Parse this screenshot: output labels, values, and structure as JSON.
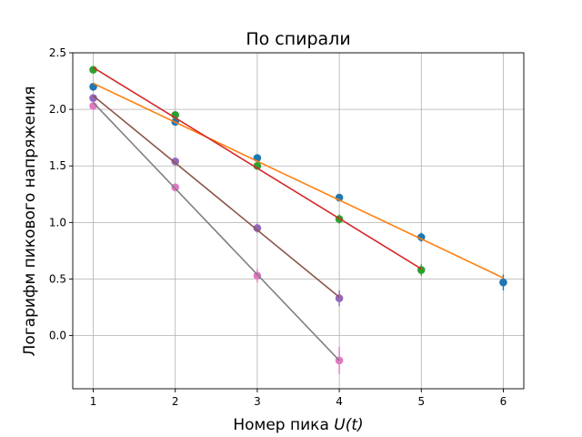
{
  "chart_data": {
    "type": "scatter",
    "title": "По спирали",
    "xlabel_prefix": "Номер пика ",
    "xlabel_math": "U(t)",
    "ylabel": "Логарифм пикового напряжения",
    "xlim": [
      0.75,
      6.25
    ],
    "ylim": [
      -0.47,
      2.5
    ],
    "xticks": [
      1,
      2,
      3,
      4,
      5,
      6
    ],
    "yticks": [
      0.0,
      0.5,
      1.0,
      1.5,
      2.0,
      2.5
    ],
    "xtick_labels": [
      "1",
      "2",
      "3",
      "4",
      "5",
      "6"
    ],
    "ytick_labels": [
      "0.0",
      "0.5",
      "1.0",
      "1.5",
      "2.0",
      "2.5"
    ],
    "grid": true,
    "series": [
      {
        "color": "#1f77b4",
        "kind": "points",
        "x": [
          1,
          2,
          3,
          4,
          5,
          6
        ],
        "y": [
          2.2,
          1.89,
          1.57,
          1.22,
          0.87,
          0.47
        ],
        "yerr": [
          0.02,
          0.02,
          0.03,
          0.03,
          0.04,
          0.07
        ]
      },
      {
        "color": "#ff7f0e",
        "kind": "line",
        "x": [
          1,
          6
        ],
        "y": [
          2.23,
          0.51
        ]
      },
      {
        "color": "#2ca02c",
        "kind": "points",
        "x": [
          1,
          2,
          3,
          4,
          5
        ],
        "y": [
          2.35,
          1.95,
          1.5,
          1.03,
          0.58
        ],
        "yerr": [
          0.02,
          0.02,
          0.03,
          0.04,
          0.05
        ]
      },
      {
        "color": "#d62728",
        "kind": "line",
        "x": [
          1,
          5
        ],
        "y": [
          2.37,
          0.59
        ]
      },
      {
        "color": "#9467bd",
        "kind": "points",
        "x": [
          1,
          2,
          3,
          4
        ],
        "y": [
          2.1,
          1.54,
          0.95,
          0.33
        ],
        "yerr": [
          0.02,
          0.03,
          0.04,
          0.07
        ]
      },
      {
        "color": "#8c564b",
        "kind": "line",
        "x": [
          1,
          4
        ],
        "y": [
          2.12,
          0.34
        ]
      },
      {
        "color": "#e377c2",
        "kind": "points",
        "x": [
          1,
          2,
          3,
          4
        ],
        "y": [
          2.03,
          1.31,
          0.53,
          -0.22
        ],
        "yerr": [
          0.02,
          0.03,
          0.06,
          0.12
        ]
      },
      {
        "color": "#7f7f7f",
        "kind": "line",
        "x": [
          1,
          4
        ],
        "y": [
          2.06,
          -0.22
        ]
      }
    ]
  }
}
